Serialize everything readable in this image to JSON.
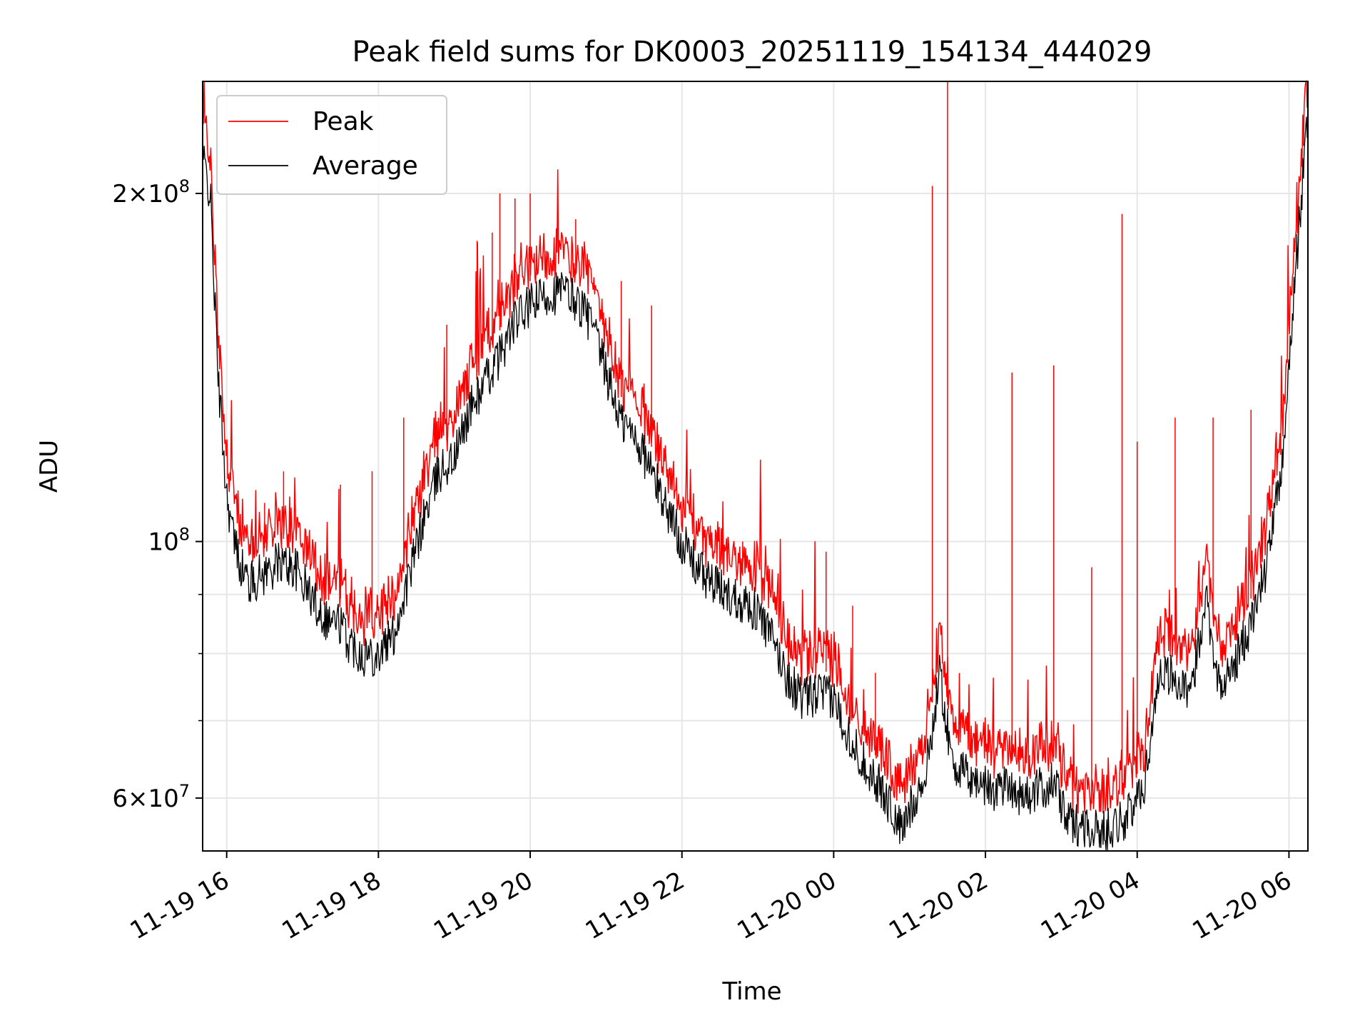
{
  "chart_data": {
    "type": "line",
    "title": "Peak field sums for DK0003_20251119_154134_444029",
    "xlabel": "Time",
    "ylabel": "ADU",
    "y_scale": "log",
    "x_range": [
      "11-19 15:41",
      "11-20 06:15"
    ],
    "ylim": [
      54000000,
      250000000
    ],
    "grid": true,
    "legend_position": "top-left",
    "x_ticks": [
      {
        "label": "11-19 16",
        "hour": 16
      },
      {
        "label": "11-19 18",
        "hour": 18
      },
      {
        "label": "11-19 20",
        "hour": 20
      },
      {
        "label": "11-19 22",
        "hour": 22
      },
      {
        "label": "11-20 00",
        "hour": 24
      },
      {
        "label": "11-20 02",
        "hour": 26
      },
      {
        "label": "11-20 04",
        "hour": 28
      },
      {
        "label": "11-20 06",
        "hour": 30
      }
    ],
    "y_ticks": [
      {
        "value": 60000000,
        "mantissa": "6",
        "exponent": "7"
      },
      {
        "value": 100000000,
        "mantissa": "",
        "exponent": "8"
      },
      {
        "value": 200000000,
        "mantissa": "2",
        "exponent": "8"
      }
    ],
    "y_minor_ticks": [
      70000000,
      80000000,
      90000000
    ],
    "series": [
      {
        "name": "Average",
        "color": "#000000",
        "time": [
          "11-19 15:41",
          "11-19 15:47",
          "11-19 15:53",
          "11-19 16:00",
          "11-19 16:06",
          "11-19 16:12",
          "11-19 16:18",
          "11-19 16:30",
          "11-19 16:42",
          "11-19 16:54",
          "11-19 17:06",
          "11-19 17:18",
          "11-19 17:30",
          "11-19 17:36",
          "11-19 17:48",
          "11-19 18:00",
          "11-19 18:12",
          "11-19 18:24",
          "11-19 18:36",
          "11-19 18:48",
          "11-19 19:00",
          "11-19 19:12",
          "11-19 19:24",
          "11-19 19:36",
          "11-19 19:48",
          "11-19 20:00",
          "11-19 20:12",
          "11-19 20:24",
          "11-19 20:36",
          "11-19 20:48",
          "11-19 21:00",
          "11-19 21:12",
          "11-19 21:24",
          "11-19 21:36",
          "11-19 21:48",
          "11-19 22:00",
          "11-19 22:12",
          "11-19 22:24",
          "11-19 22:36",
          "11-19 22:48",
          "11-19 23:00",
          "11-19 23:12",
          "11-19 23:24",
          "11-19 23:36",
          "11-19 23:48",
          "11-20 00:00",
          "11-20 00:18",
          "11-20 00:30",
          "11-20 00:42",
          "11-20 00:54",
          "11-20 01:03",
          "11-20 01:12",
          "11-20 01:24",
          "11-20 01:33",
          "11-20 01:42",
          "11-20 01:54",
          "11-20 02:06",
          "11-20 02:18",
          "11-20 02:30",
          "11-20 02:42",
          "11-20 02:54",
          "11-20 03:06",
          "11-20 03:18",
          "11-20 03:30",
          "11-20 03:42",
          "11-20 03:54",
          "11-20 04:06",
          "11-20 04:18",
          "11-20 04:30",
          "11-20 04:42",
          "11-20 04:54",
          "11-20 05:06",
          "11-20 05:18",
          "11-20 05:30",
          "11-20 05:42",
          "11-20 05:54",
          "11-20 06:06",
          "11-20 06:15"
        ],
        "values": [
          215000000,
          200000000,
          140000000,
          110000000,
          100000000,
          95000000,
          92000000,
          94000000,
          96000000,
          95000000,
          90000000,
          86000000,
          85000000,
          82000000,
          80000000,
          80000000,
          83000000,
          93000000,
          105000000,
          115000000,
          118000000,
          130000000,
          137000000,
          145000000,
          155000000,
          160000000,
          163000000,
          165000000,
          162000000,
          155000000,
          140000000,
          127000000,
          123000000,
          115000000,
          107000000,
          100000000,
          95000000,
          92000000,
          90000000,
          89000000,
          87000000,
          82000000,
          76000000,
          73000000,
          74000000,
          73000000,
          66000000,
          63000000,
          60000000,
          56000000,
          60000000,
          62000000,
          77000000,
          65000000,
          63000000,
          62000000,
          61000000,
          62000000,
          60000000,
          61000000,
          62000000,
          57000000,
          57000000,
          56000000,
          57000000,
          58000000,
          62000000,
          78000000,
          76000000,
          73000000,
          90000000,
          74000000,
          79000000,
          85000000,
          95000000,
          115000000,
          175000000,
          235000000
        ]
      },
      {
        "name": "Peak",
        "color": "#ff0000",
        "peak_ratio": 1.06,
        "spikes": [
          {
            "time": "11-19 16:30",
            "value": 108000000
          },
          {
            "time": "11-19 16:45",
            "value": 115000000
          },
          {
            "time": "11-19 17:30",
            "value": 112000000
          },
          {
            "time": "11-19 17:55",
            "value": 115000000
          },
          {
            "time": "11-19 18:20",
            "value": 128000000
          },
          {
            "time": "11-19 18:54",
            "value": 154000000
          },
          {
            "time": "11-19 19:18",
            "value": 182000000
          },
          {
            "time": "11-19 19:30",
            "value": 185000000
          },
          {
            "time": "11-19 19:36",
            "value": 200000000
          },
          {
            "time": "11-19 19:48",
            "value": 198000000
          },
          {
            "time": "11-19 20:00",
            "value": 200000000
          },
          {
            "time": "11-19 20:36",
            "value": 190000000
          },
          {
            "time": "11-19 21:12",
            "value": 168000000
          },
          {
            "time": "11-19 21:36",
            "value": 160000000
          },
          {
            "time": "11-19 22:18",
            "value": 98000000
          },
          {
            "time": "11-19 22:48",
            "value": 100000000
          },
          {
            "time": "11-19 23:54",
            "value": 98000000
          },
          {
            "time": "11-20 00:15",
            "value": 88000000
          },
          {
            "time": "11-20 00:33",
            "value": 77000000
          },
          {
            "time": "11-20 01:18",
            "value": 203000000
          },
          {
            "time": "11-20 01:30",
            "value": 250000000
          },
          {
            "time": "11-20 02:21",
            "value": 140000000
          },
          {
            "time": "11-20 02:54",
            "value": 142000000
          },
          {
            "time": "11-20 03:24",
            "value": 95000000
          },
          {
            "time": "11-20 03:48",
            "value": 192000000
          },
          {
            "time": "11-20 04:00",
            "value": 122000000
          },
          {
            "time": "11-20 04:30",
            "value": 128000000
          },
          {
            "time": "11-20 05:00",
            "value": 128000000
          },
          {
            "time": "11-20 05:30",
            "value": 130000000
          }
        ]
      }
    ]
  }
}
